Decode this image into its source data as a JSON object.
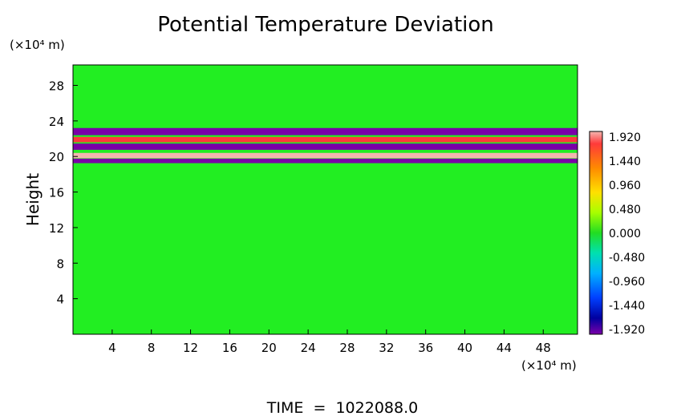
{
  "chart_data": {
    "type": "heatmap",
    "title": "Potential Temperature Deviation",
    "ylabel": "Height",
    "xlabel": "",
    "x_unit": "(×10⁴ m)",
    "y_unit": "(×10⁴ m)",
    "footer": "TIME  =  1022088.0",
    "xlim": [
      0,
      51.5
    ],
    "ylim": [
      0,
      30.3
    ],
    "x_ticks": [
      "4",
      "8",
      "12",
      "16",
      "20",
      "24",
      "28",
      "32",
      "36",
      "40",
      "44",
      "48"
    ],
    "y_ticks": [
      "4",
      "8",
      "12",
      "16",
      "20",
      "24",
      "28"
    ],
    "colorbar": {
      "range": [
        -1.92,
        1.92
      ],
      "labels": [
        "1.920",
        "1.440",
        "0.960",
        "0.480",
        "0.000",
        "-0.480",
        "-0.960",
        "-1.440",
        "-1.920"
      ]
    },
    "features": [
      {
        "kind": "band",
        "y": 22.8,
        "value": -1.9,
        "thickness": 0.8
      },
      {
        "kind": "band",
        "y": 21.9,
        "value": 1.6,
        "thickness": 0.6
      },
      {
        "kind": "band",
        "y": 21.1,
        "value": -1.9,
        "thickness": 0.7
      },
      {
        "kind": "band",
        "y": 20.1,
        "value": 1.7,
        "thickness": 0.6
      },
      {
        "kind": "band",
        "y": 19.5,
        "value": -1.8,
        "thickness": 0.5
      }
    ]
  }
}
